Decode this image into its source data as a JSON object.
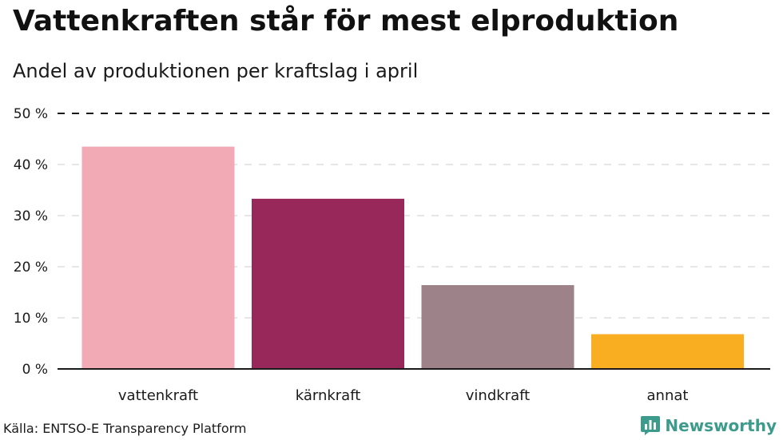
{
  "title": "Vattenkraften står för mest elproduktion",
  "subtitle": "Andel av produktionen per kraftslag i april",
  "source": "Källa: ENTSO-E Transparency Platform",
  "brand": {
    "name": "Newsworthy",
    "color": "#3d9b8c",
    "icon": "bar-chart-logo-icon"
  },
  "chart_data": {
    "type": "bar",
    "categories": [
      "vattenkraft",
      "kärnkraft",
      "vindkraft",
      "annat"
    ],
    "values": [
      43.5,
      33.3,
      16.4,
      6.8
    ],
    "colors": [
      "#f2abb5",
      "#99285a",
      "#9e8289",
      "#f9ae21"
    ],
    "ylim": [
      0,
      50
    ],
    "yticks": [
      0,
      10,
      20,
      30,
      40,
      50
    ],
    "ytick_labels": [
      "0 %",
      "10 %",
      "20 %",
      "30 %",
      "40 %",
      "50 %"
    ],
    "grid": true,
    "legend": "none"
  }
}
